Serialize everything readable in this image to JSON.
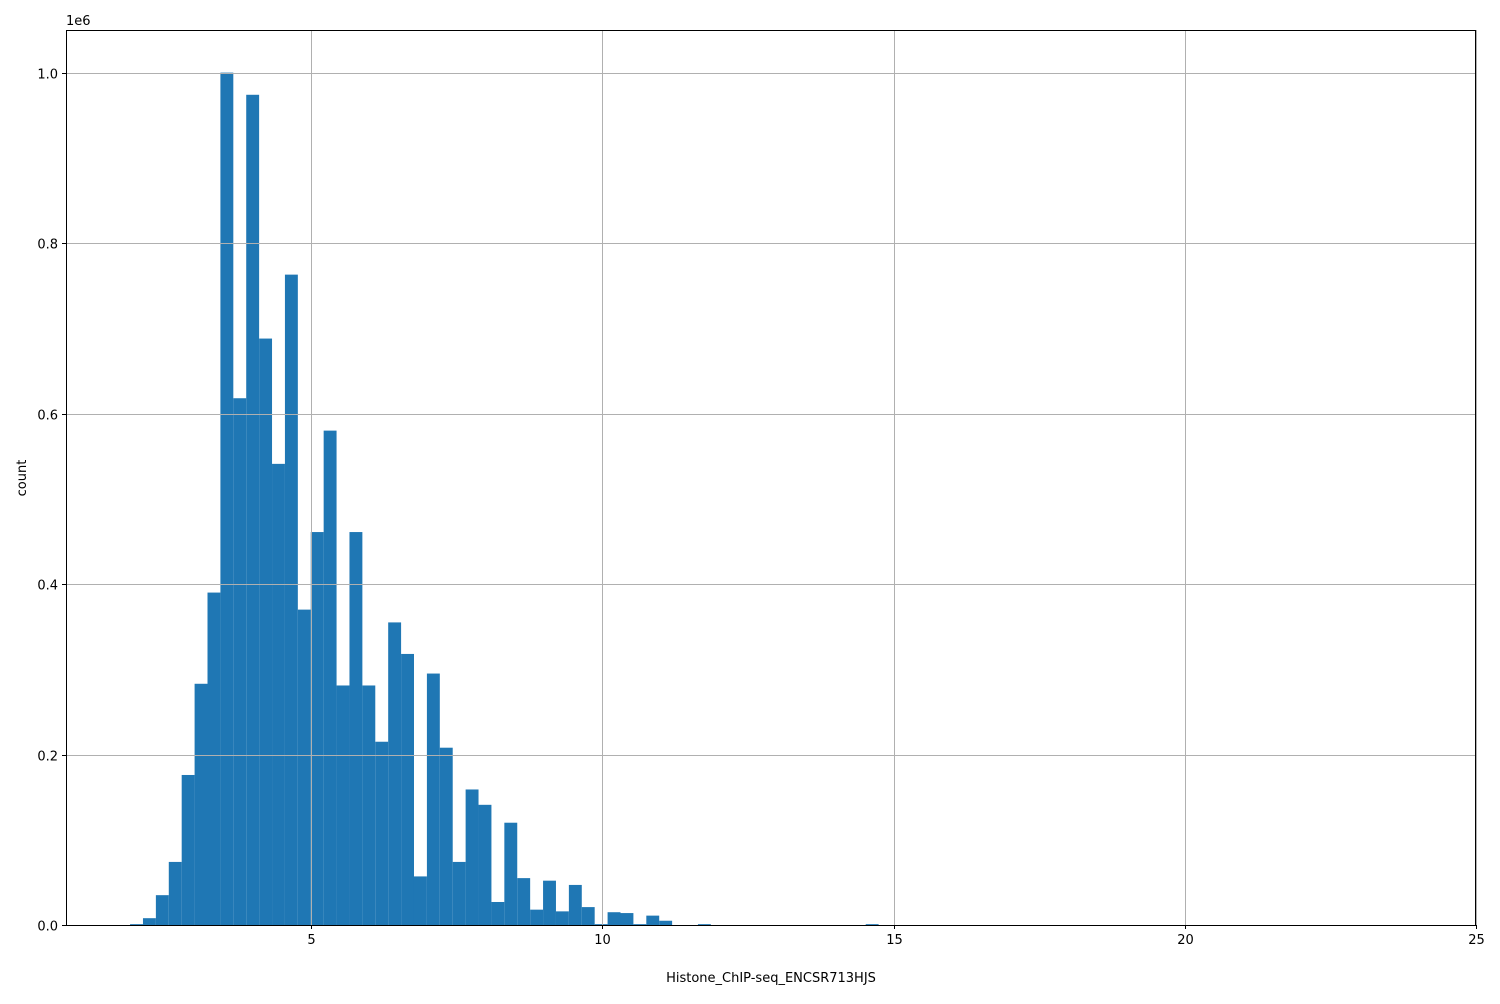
{
  "chart_data": {
    "type": "bar",
    "subtype": "histogram",
    "title": "",
    "xlabel": "Histone_ChIP-seq_ENCSR713HJS",
    "ylabel": "count",
    "y_offset_label": "1e6",
    "xlim": [
      0.79,
      25.0
    ],
    "ylim": [
      0,
      1050000
    ],
    "xticks": [
      5,
      10,
      15,
      20,
      25
    ],
    "xtick_labels": [
      "5",
      "10",
      "15",
      "20",
      "25"
    ],
    "yticks": [
      0,
      200000,
      400000,
      600000,
      800000,
      1000000
    ],
    "ytick_labels": [
      "0.0",
      "0.2",
      "0.4",
      "0.6",
      "0.8",
      "1.0"
    ],
    "grid": true,
    "bar_color": "#1f77b4",
    "bin_start": 1.89,
    "bin_width": 0.2216,
    "counts": [
      1000,
      8000,
      35000,
      74000,
      176000,
      283000,
      390000,
      1000000,
      618000,
      974000,
      688000,
      541000,
      763000,
      370000,
      461000,
      580000,
      281000,
      461000,
      281000,
      215000,
      355000,
      318000,
      57000,
      295000,
      208000,
      74000,
      159000,
      141000,
      27000,
      120000,
      55000,
      18000,
      52000,
      16000,
      47000,
      21000,
      1000,
      15000,
      14000,
      1000,
      11000,
      5000,
      0,
      0,
      1000,
      0,
      0,
      0,
      0,
      0,
      0,
      0,
      0,
      0,
      0,
      0,
      0,
      1000
    ]
  }
}
